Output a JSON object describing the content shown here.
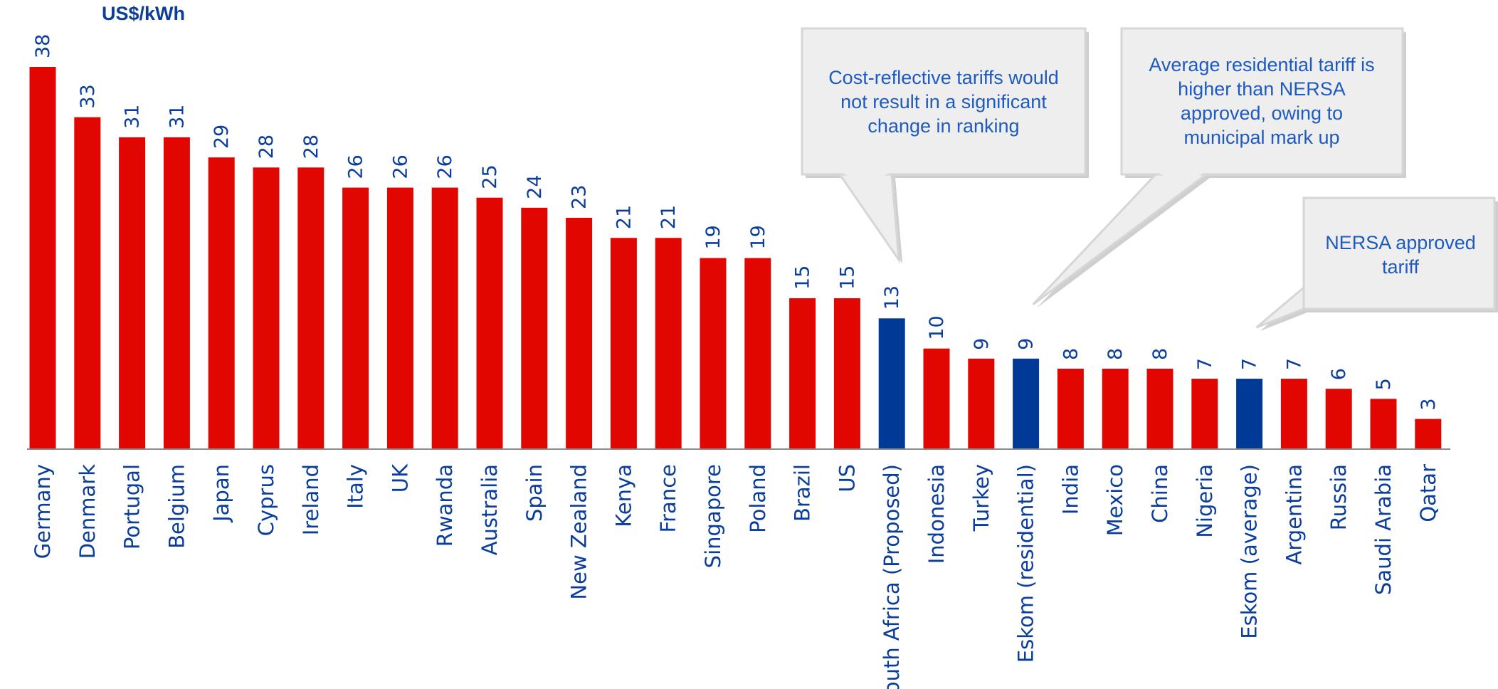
{
  "chart_data": {
    "type": "bar",
    "ylabel": "US$/kWh",
    "ylim": [
      0,
      38
    ],
    "categories": [
      "Germany",
      "Denmark",
      "Portugal",
      "Belgium",
      "Japan",
      "Cyprus",
      "Ireland",
      "Italy",
      "UK",
      "Rwanda",
      "Australia",
      "Spain",
      "New Zealand",
      "Kenya",
      "France",
      "Singapore",
      "Poland",
      "Brazil",
      "US",
      "South Africa (Proposed)",
      "Indonesia",
      "Turkey",
      "Eskom (residential)",
      "India",
      "Mexico",
      "China",
      "Nigeria",
      "Eskom (average)",
      "Argentina",
      "Russia",
      "Saudi Arabia",
      "Qatar"
    ],
    "values": [
      38,
      33,
      31,
      31,
      29,
      28,
      28,
      26,
      26,
      26,
      25,
      24,
      23,
      21,
      21,
      19,
      19,
      15,
      15,
      13,
      10,
      9,
      9,
      8,
      8,
      8,
      7,
      7,
      7,
      6,
      5,
      3
    ],
    "highlighted": [
      "South Africa (Proposed)",
      "Eskom (residential)",
      "Eskom (average)"
    ],
    "colors": {
      "default": "#e10600",
      "highlight": "#003a96",
      "text": "#0a3d9c"
    },
    "annotations": [
      {
        "target": "South Africa (Proposed)",
        "lines": [
          "Cost-reflective tariffs would",
          "not result in a significant",
          "change in ranking"
        ]
      },
      {
        "target": "Eskom (residential)",
        "lines": [
          "Average residential tariff is",
          "higher than NERSA",
          "approved, owing to",
          "municipal mark up"
        ]
      },
      {
        "target": "Eskom (average)",
        "lines": [
          "NERSA approved",
          "tariff"
        ]
      }
    ]
  }
}
